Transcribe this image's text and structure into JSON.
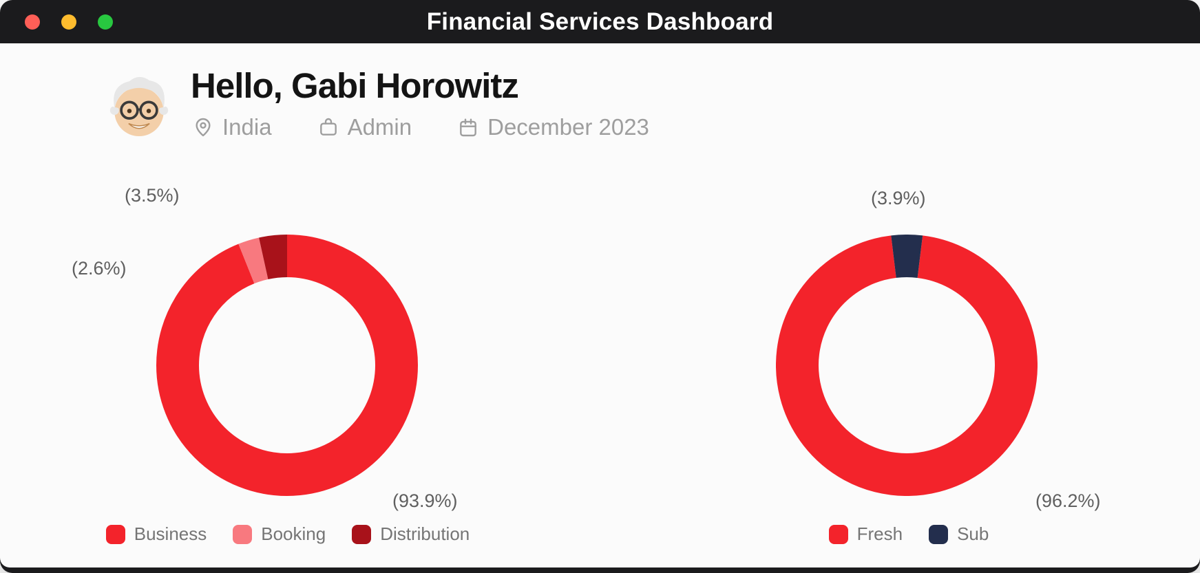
{
  "window": {
    "title": "Financial Services Dashboard",
    "traffic_lights": [
      "close",
      "minimize",
      "zoom"
    ]
  },
  "header": {
    "greeting": "Hello, Gabi Horowitz",
    "meta": {
      "location": "India",
      "role": "Admin",
      "period": "December 2023"
    }
  },
  "colors": {
    "titlebar_bg": "#1b1b1d",
    "content_bg": "#fbfbfb",
    "heading_text": "#141414",
    "meta_text": "#9e9e9e",
    "callout_text": "#5f5f5f",
    "legend_text": "#757575",
    "traffic_close": "#ff5f57",
    "traffic_minimize": "#febc2e",
    "traffic_zoom": "#28c840"
  },
  "chart_data": [
    {
      "type": "pie",
      "donut": true,
      "start_angle": 0,
      "legend_position": "bottom",
      "units": "%",
      "slices": [
        {
          "label": "Business",
          "value": 93.9,
          "color": "#f3232b",
          "callout": "(93.9%)"
        },
        {
          "label": "Booking",
          "value": 2.6,
          "color": "#f8797f",
          "callout": "(2.6%)"
        },
        {
          "label": "Distribution",
          "value": 3.5,
          "color": "#a8121a",
          "callout": "(3.5%)"
        }
      ]
    },
    {
      "type": "pie",
      "donut": true,
      "start_angle": 7,
      "legend_position": "bottom",
      "units": "%",
      "slices": [
        {
          "label": "Fresh",
          "value": 96.2,
          "color": "#f3232b",
          "callout": "(96.2%)"
        },
        {
          "label": "Sub",
          "value": 3.9,
          "color": "#232e4d",
          "callout": "(3.9%)"
        }
      ]
    }
  ]
}
